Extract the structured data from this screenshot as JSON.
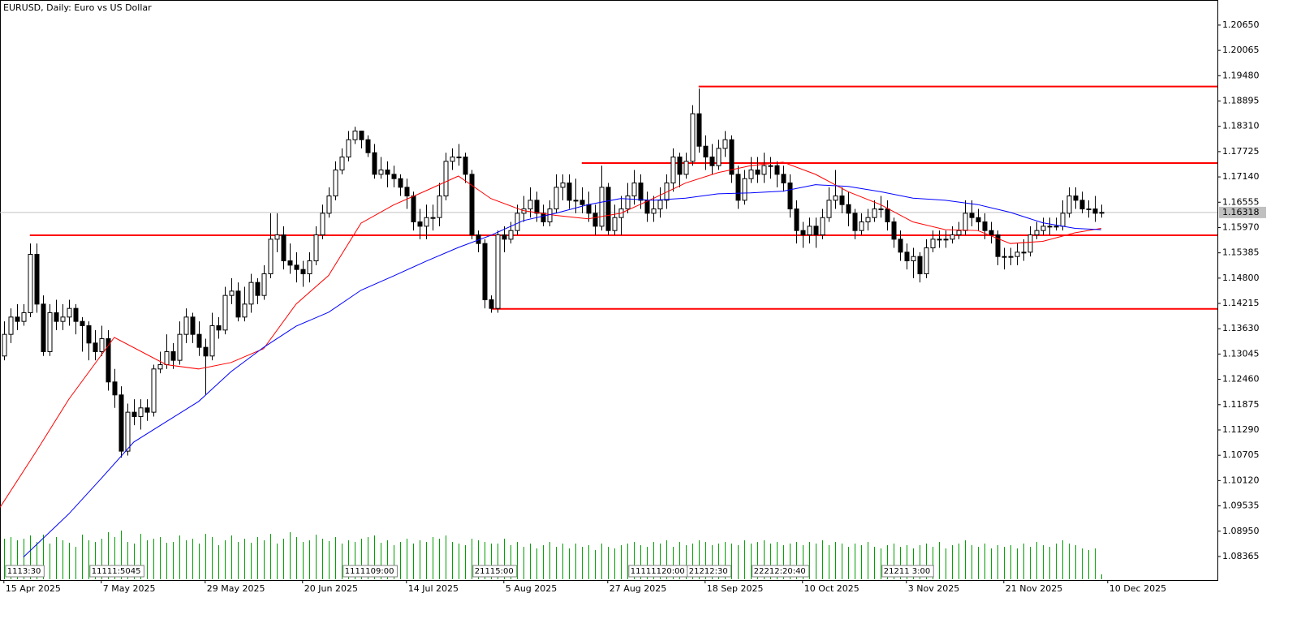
{
  "chart_data": {
    "type": "candlestick",
    "title": "EURUSD, Daily:  Euro vs US Dollar",
    "xlim": [
      -0.6,
      186.9
    ],
    "ylim": [
      1.0782,
      1.2123
    ],
    "xticks": [
      {
        "value": 0,
        "label": "15 Apr 2025"
      },
      {
        "value": 15,
        "label": "7 May 2025"
      },
      {
        "value": 31,
        "label": "29 May 2025"
      },
      {
        "value": 46,
        "label": "20 Jun 2025"
      },
      {
        "value": 62,
        "label": "14 Jul 2025"
      },
      {
        "value": 77,
        "label": "5 Aug 2025"
      },
      {
        "value": 93,
        "label": "27 Aug 2025"
      },
      {
        "value": 108,
        "label": "18 Sep 2025"
      },
      {
        "value": 123,
        "label": "10 Oct 2025"
      },
      {
        "value": 139,
        "label": "3 Nov 2025"
      },
      {
        "value": 154,
        "label": "21 Nov 2025"
      },
      {
        "value": 170,
        "label": "10 Dec 2025"
      }
    ],
    "yticks": [
      {
        "value": 1.2065,
        "label": "1.20650"
      },
      {
        "value": 1.20065,
        "label": "1.20065"
      },
      {
        "value": 1.1948,
        "label": "1.19480"
      },
      {
        "value": 1.18895,
        "label": "1.18895"
      },
      {
        "value": 1.1831,
        "label": "1.18310"
      },
      {
        "value": 1.17725,
        "label": "1.17725"
      },
      {
        "value": 1.1714,
        "label": "1.17140"
      },
      {
        "value": 1.16555,
        "label": "1.16555"
      },
      {
        "value": 1.1597,
        "label": "1.15970"
      },
      {
        "value": 1.15385,
        "label": "1.15385"
      },
      {
        "value": 1.148,
        "label": "1.14800"
      },
      {
        "value": 1.14215,
        "label": "1.14215"
      },
      {
        "value": 1.1363,
        "label": "1.13630"
      },
      {
        "value": 1.13045,
        "label": "1.13045"
      },
      {
        "value": 1.1246,
        "label": "1.12460"
      },
      {
        "value": 1.11875,
        "label": "1.11875"
      },
      {
        "value": 1.1129,
        "label": "1.11290"
      },
      {
        "value": 1.10705,
        "label": "1.10705"
      },
      {
        "value": 1.1012,
        "label": "1.10120"
      },
      {
        "value": 1.09535,
        "label": "1.09535"
      },
      {
        "value": 1.0895,
        "label": "1.08950"
      },
      {
        "value": 1.08365,
        "label": "1.08365"
      }
    ],
    "bull_color": "#ffffff",
    "bear_color": "#000000",
    "open": [
      1.13,
      1.135,
      1.139,
      1.138,
      1.14,
      1.1535,
      1.142,
      1.131,
      1.14,
      1.138,
      1.139,
      1.141,
      1.138,
      1.137,
      1.133,
      1.131,
      1.134,
      1.124,
      1.121,
      1.108,
      1.117,
      1.116,
      1.118,
      1.117,
      1.127,
      1.128,
      1.131,
      1.129,
      1.135,
      1.139,
      1.135,
      1.132,
      1.13,
      1.137,
      1.136,
      1.144,
      1.145,
      1.139,
      1.142,
      1.147,
      1.144,
      1.149,
      1.157,
      1.158,
      1.152,
      1.151,
      1.15,
      1.149,
      1.152,
      1.158,
      1.163,
      1.167,
      1.173,
      1.176,
      1.18,
      1.182,
      1.18,
      1.177,
      1.172,
      1.173,
      1.172,
      1.171,
      1.169,
      1.167,
      1.161,
      1.16,
      1.162,
      1.162,
      1.167,
      1.175,
      1.176,
      1.176,
      1.172,
      1.158,
      1.156,
      1.143,
      1.141,
      1.158,
      1.157,
      1.159,
      1.163,
      1.164,
      1.166,
      1.163,
      1.161,
      1.164,
      1.169,
      1.17,
      1.166,
      1.166,
      1.165,
      1.163,
      1.16,
      1.169,
      1.159,
      1.162,
      1.164,
      1.167,
      1.17,
      1.166,
      1.163,
      1.164,
      1.166,
      1.17,
      1.176,
      1.172,
      1.175,
      1.186,
      1.1785,
      1.176,
      1.174,
      1.178,
      1.18,
      1.172,
      1.166,
      1.171,
      1.173,
      1.172,
      1.174,
      1.174,
      1.172,
      1.17,
      1.164,
      1.159,
      1.158,
      1.16,
      1.158,
      1.162,
      1.166,
      1.167,
      1.165,
      1.163,
      1.159,
      1.161,
      1.162,
      1.164,
      1.164,
      1.161,
      1.157,
      1.154,
      1.152,
      1.153,
      1.149,
      1.155,
      1.157,
      1.157,
      1.157,
      1.158,
      1.159,
      1.163,
      1.162,
      1.161,
      1.159,
      1.158,
      1.153,
      1.153,
      1.153,
      1.154,
      1.154,
      1.158,
      1.159,
      1.16,
      1.16,
      1.16,
      1.163,
      1.167,
      1.166,
      1.164,
      1.164,
      1.163
    ],
    "high": [
      1.138,
      1.141,
      1.142,
      1.142,
      1.156,
      1.156,
      1.144,
      1.142,
      1.143,
      1.142,
      1.143,
      1.142,
      1.139,
      1.138,
      1.136,
      1.137,
      1.136,
      1.127,
      1.123,
      1.119,
      1.12,
      1.12,
      1.12,
      1.128,
      1.131,
      1.135,
      1.133,
      1.138,
      1.141,
      1.14,
      1.138,
      1.134,
      1.14,
      1.139,
      1.146,
      1.148,
      1.147,
      1.146,
      1.149,
      1.148,
      1.151,
      1.163,
      1.163,
      1.16,
      1.156,
      1.154,
      1.152,
      1.154,
      1.16,
      1.165,
      1.169,
      1.175,
      1.178,
      1.182,
      1.183,
      1.182,
      1.181,
      1.179,
      1.176,
      1.175,
      1.174,
      1.172,
      1.171,
      1.168,
      1.164,
      1.165,
      1.165,
      1.17,
      1.177,
      1.178,
      1.179,
      1.177,
      1.173,
      1.159,
      1.157,
      1.144,
      1.159,
      1.16,
      1.161,
      1.165,
      1.167,
      1.169,
      1.168,
      1.165,
      1.166,
      1.172,
      1.172,
      1.172,
      1.171,
      1.169,
      1.168,
      1.165,
      1.174,
      1.17,
      1.165,
      1.167,
      1.17,
      1.173,
      1.172,
      1.168,
      1.167,
      1.169,
      1.172,
      1.178,
      1.177,
      1.177,
      1.188,
      1.1918,
      1.181,
      1.179,
      1.18,
      1.182,
      1.181,
      1.174,
      1.173,
      1.176,
      1.176,
      1.177,
      1.176,
      1.175,
      1.174,
      1.172,
      1.166,
      1.161,
      1.162,
      1.162,
      1.164,
      1.169,
      1.173,
      1.169,
      1.168,
      1.164,
      1.163,
      1.164,
      1.166,
      1.167,
      1.166,
      1.162,
      1.159,
      1.156,
      1.155,
      1.154,
      1.157,
      1.159,
      1.159,
      1.159,
      1.16,
      1.161,
      1.166,
      1.166,
      1.164,
      1.163,
      1.161,
      1.159,
      1.155,
      1.155,
      1.156,
      1.157,
      1.16,
      1.161,
      1.162,
      1.162,
      1.162,
      1.166,
      1.169,
      1.169,
      1.168,
      1.166,
      1.167,
      1.165
    ],
    "low": [
      1.129,
      1.133,
      1.136,
      1.137,
      1.139,
      1.14,
      1.13,
      1.13,
      1.136,
      1.136,
      1.137,
      1.135,
      1.131,
      1.129,
      1.129,
      1.13,
      1.122,
      1.118,
      1.1065,
      1.107,
      1.114,
      1.113,
      1.115,
      1.116,
      1.126,
      1.127,
      1.127,
      1.128,
      1.133,
      1.133,
      1.13,
      1.121,
      1.129,
      1.134,
      1.135,
      1.142,
      1.138,
      1.138,
      1.14,
      1.142,
      1.143,
      1.148,
      1.154,
      1.15,
      1.149,
      1.147,
      1.146,
      1.147,
      1.151,
      1.157,
      1.162,
      1.166,
      1.172,
      1.175,
      1.179,
      1.178,
      1.176,
      1.171,
      1.171,
      1.169,
      1.169,
      1.167,
      1.164,
      1.159,
      1.157,
      1.157,
      1.159,
      1.16,
      1.166,
      1.173,
      1.174,
      1.17,
      1.157,
      1.154,
      1.141,
      1.14,
      1.14,
      1.154,
      1.156,
      1.158,
      1.161,
      1.162,
      1.161,
      1.16,
      1.16,
      1.163,
      1.166,
      1.164,
      1.163,
      1.163,
      1.161,
      1.158,
      1.159,
      1.158,
      1.158,
      1.158,
      1.163,
      1.165,
      1.164,
      1.161,
      1.161,
      1.162,
      1.164,
      1.168,
      1.169,
      1.171,
      1.174,
      1.177,
      1.173,
      1.172,
      1.173,
      1.176,
      1.17,
      1.164,
      1.165,
      1.17,
      1.17,
      1.17,
      1.171,
      1.169,
      1.168,
      1.162,
      1.156,
      1.155,
      1.156,
      1.155,
      1.157,
      1.161,
      1.164,
      1.163,
      1.16,
      1.157,
      1.158,
      1.159,
      1.161,
      1.162,
      1.159,
      1.155,
      1.152,
      1.15,
      1.148,
      1.147,
      1.148,
      1.154,
      1.155,
      1.155,
      1.156,
      1.157,
      1.158,
      1.16,
      1.159,
      1.157,
      1.156,
      1.151,
      1.15,
      1.151,
      1.151,
      1.152,
      1.153,
      1.157,
      1.158,
      1.158,
      1.159,
      1.159,
      1.162,
      1.164,
      1.163,
      1.162,
      1.161,
      1.162
    ],
    "close": [
      1.135,
      1.139,
      1.138,
      1.14,
      1.1535,
      1.142,
      1.131,
      1.14,
      1.138,
      1.139,
      1.141,
      1.138,
      1.137,
      1.133,
      1.131,
      1.134,
      1.124,
      1.121,
      1.108,
      1.117,
      1.116,
      1.118,
      1.117,
      1.127,
      1.128,
      1.131,
      1.129,
      1.135,
      1.139,
      1.135,
      1.132,
      1.13,
      1.137,
      1.136,
      1.144,
      1.145,
      1.139,
      1.142,
      1.147,
      1.144,
      1.149,
      1.157,
      1.158,
      1.152,
      1.151,
      1.15,
      1.149,
      1.152,
      1.158,
      1.163,
      1.167,
      1.173,
      1.176,
      1.18,
      1.182,
      1.18,
      1.177,
      1.172,
      1.173,
      1.172,
      1.171,
      1.169,
      1.167,
      1.161,
      1.16,
      1.162,
      1.162,
      1.167,
      1.175,
      1.176,
      1.176,
      1.172,
      1.158,
      1.156,
      1.143,
      1.141,
      1.158,
      1.157,
      1.159,
      1.163,
      1.164,
      1.166,
      1.163,
      1.161,
      1.164,
      1.169,
      1.17,
      1.166,
      1.166,
      1.165,
      1.163,
      1.16,
      1.169,
      1.159,
      1.162,
      1.164,
      1.167,
      1.17,
      1.166,
      1.163,
      1.164,
      1.166,
      1.17,
      1.176,
      1.172,
      1.175,
      1.186,
      1.1785,
      1.176,
      1.174,
      1.178,
      1.18,
      1.172,
      1.166,
      1.171,
      1.173,
      1.172,
      1.174,
      1.174,
      1.172,
      1.17,
      1.164,
      1.159,
      1.158,
      1.16,
      1.158,
      1.162,
      1.166,
      1.167,
      1.165,
      1.163,
      1.159,
      1.161,
      1.162,
      1.164,
      1.164,
      1.161,
      1.157,
      1.154,
      1.152,
      1.153,
      1.149,
      1.155,
      1.157,
      1.157,
      1.157,
      1.158,
      1.159,
      1.163,
      1.162,
      1.161,
      1.159,
      1.158,
      1.153,
      1.153,
      1.153,
      1.154,
      1.154,
      1.158,
      1.159,
      1.16,
      1.16,
      1.16,
      1.163,
      1.167,
      1.166,
      1.164,
      1.164,
      1.163,
      1.1632
    ],
    "overlays": [
      {
        "color": "#ff0000",
        "x": [
          -0.6,
          5,
          10,
          17,
          25,
          30,
          35,
          40,
          45,
          50,
          55,
          60,
          65,
          70,
          75,
          80,
          85,
          90,
          95,
          100,
          105,
          110,
          115,
          120,
          125,
          130,
          135,
          140,
          145,
          150,
          155,
          160,
          165,
          169
        ],
        "values": [
          1.095,
          1.108,
          1.12,
          1.1343,
          1.128,
          1.127,
          1.1285,
          1.1317,
          1.142,
          1.1486,
          1.1607,
          1.1649,
          1.1682,
          1.1716,
          1.1664,
          1.1636,
          1.1625,
          1.1617,
          1.163,
          1.1664,
          1.17,
          1.1724,
          1.174,
          1.1748,
          1.172,
          1.168,
          1.165,
          1.161,
          1.1592,
          1.159,
          1.156,
          1.1565,
          1.1585,
          1.1595
        ]
      },
      {
        "color": "#0000ff",
        "x": [
          3,
          10,
          15,
          20,
          25,
          30,
          35,
          40,
          45,
          50,
          55,
          60,
          65,
          70,
          75,
          80,
          85,
          90,
          95,
          100,
          105,
          110,
          115,
          120,
          125,
          130,
          135,
          140,
          145,
          150,
          155,
          160,
          165,
          169
        ],
        "values": [
          1.0835,
          1.0935,
          1.1017,
          1.1101,
          1.1148,
          1.1195,
          1.1264,
          1.132,
          1.1369,
          1.1401,
          1.1452,
          1.1485,
          1.1519,
          1.1551,
          1.1579,
          1.1613,
          1.163,
          1.165,
          1.1664,
          1.166,
          1.1665,
          1.1675,
          1.1677,
          1.1681,
          1.1696,
          1.1692,
          1.168,
          1.1665,
          1.166,
          1.165,
          1.1632,
          1.1608,
          1.1595,
          1.1592
        ]
      }
    ],
    "levels": [
      {
        "value": 1.1923,
        "from": 107
      },
      {
        "value": 1.1746,
        "from": 89
      },
      {
        "value": 1.1579,
        "from": 4
      },
      {
        "value": 1.1409,
        "from": 75
      }
    ],
    "level_color": "#ff0000",
    "last_price": 1.16318,
    "volume": [
      50,
      52,
      48,
      50,
      54,
      46,
      55,
      44,
      52,
      48,
      45,
      40,
      55,
      48,
      46,
      50,
      58,
      52,
      60,
      46,
      44,
      56,
      48,
      50,
      52,
      45,
      46,
      54,
      48,
      50,
      44,
      56,
      52,
      42,
      48,
      54,
      46,
      50,
      45,
      52,
      48,
      56,
      44,
      50,
      58,
      52,
      46,
      48,
      55,
      50,
      47,
      52,
      44,
      48,
      46,
      50,
      52,
      54,
      45,
      48,
      42,
      46,
      50,
      44,
      48,
      46,
      52,
      50,
      54,
      46,
      44,
      42,
      50,
      48,
      46,
      44,
      44,
      50,
      42,
      46,
      40,
      44,
      38,
      42,
      46,
      40,
      44,
      38,
      44,
      40,
      42,
      36,
      44,
      40,
      38,
      42,
      44,
      46,
      42,
      40,
      46,
      44,
      48,
      40,
      46,
      42,
      44,
      48,
      46,
      42,
      44,
      46,
      44,
      42,
      48,
      44,
      46,
      48,
      44,
      46,
      42,
      44,
      46,
      42,
      46,
      44,
      48,
      42,
      46,
      44,
      40,
      44,
      42,
      46,
      40,
      38,
      42,
      44,
      40,
      42,
      38,
      42,
      44,
      40,
      46,
      38,
      42,
      44,
      48,
      42,
      40,
      44,
      38,
      42,
      40,
      42,
      38,
      44,
      40,
      46,
      42,
      40,
      44,
      48,
      44,
      42,
      38,
      36,
      38,
      6
    ],
    "volume_color": "#00a000",
    "event_labels": [
      {
        "text": "1113:30",
        "x": 0
      },
      {
        "text": "11111:5045",
        "x": 13
      },
      {
        "text": "1111109:00",
        "x": 52
      },
      {
        "text": "21115:00",
        "x": 72
      },
      {
        "text": "11111120:00",
        "x": 96
      },
      {
        "text": "21212:30",
        "x": 105
      },
      {
        "text": "22212:20:40",
        "x": 115
      },
      {
        "text": "21211 3:00",
        "x": 135
      }
    ]
  }
}
